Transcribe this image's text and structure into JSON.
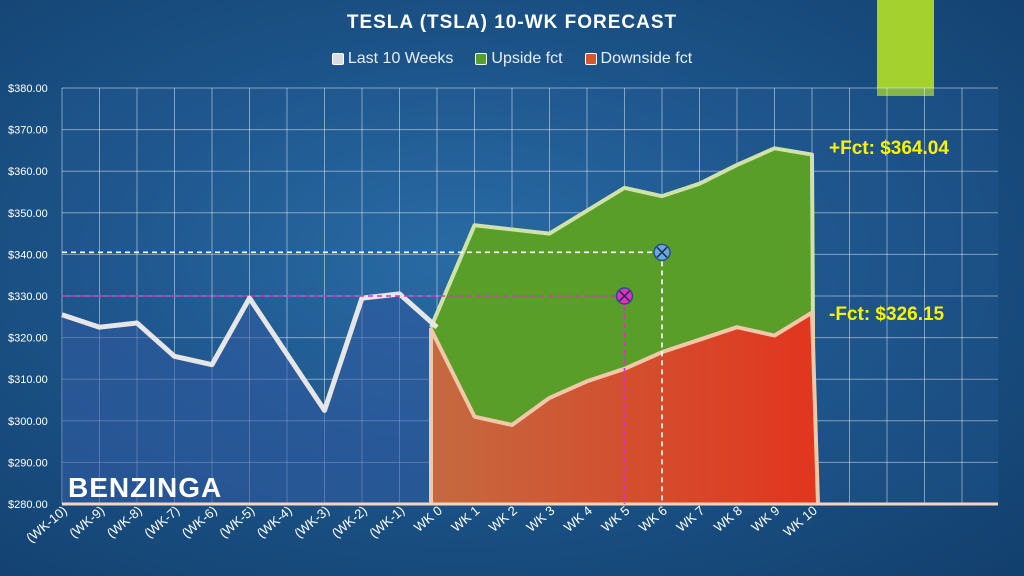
{
  "chart_data": {
    "type": "area",
    "title": "TESLA (TSLA) 10-WK FORECAST",
    "categories": [
      "(WK-10)",
      "(WK-9)",
      "(WK-8)",
      "(WK-7)",
      "(WK-6)",
      "(WK-5)",
      "(WK-4)",
      "(WK-3)",
      "(WK-2)",
      "(WK-1)",
      "WK 0",
      "WK 1",
      "WK 2",
      "WK 3",
      "WK 4",
      "WK 5",
      "WK 6",
      "WK 7",
      "WK 8",
      "WK 9",
      "WK 10"
    ],
    "ylim": [
      280,
      380
    ],
    "yticks": [
      "$280.00",
      "$290.00",
      "$300.00",
      "$310.00",
      "$320.00",
      "$330.00",
      "$340.00",
      "$350.00",
      "$360.00",
      "$370.00",
      "$380.00"
    ],
    "grid": true,
    "legend_position": "top",
    "series": [
      {
        "name": "Last 10 Weeks",
        "type": "line",
        "color": "#e6e6e6",
        "values": [
          325.5,
          322.5,
          323.5,
          315.5,
          313.5,
          329.5,
          316.0,
          302.5,
          329.5,
          330.5,
          322.5,
          null,
          null,
          null,
          null,
          null,
          null,
          null,
          null,
          null,
          null
        ]
      },
      {
        "name": "Upside fct",
        "type": "area",
        "color": "#5a9e2a",
        "values": [
          null,
          null,
          null,
          null,
          null,
          null,
          null,
          null,
          null,
          null,
          322.5,
          347.0,
          346.0,
          345.0,
          350.5,
          356.0,
          354.0,
          357.0,
          361.5,
          365.5,
          364.0
        ]
      },
      {
        "name": "Downside fct",
        "type": "area",
        "color": "#d9552e",
        "values": [
          null,
          null,
          null,
          null,
          null,
          null,
          null,
          null,
          null,
          null,
          322.0,
          301.0,
          299.0,
          305.5,
          309.5,
          312.5,
          316.5,
          319.5,
          322.5,
          320.5,
          326.0
        ]
      }
    ],
    "markers": [
      {
        "name": "upside-target",
        "x": "WK 6",
        "y": 340.5,
        "color": "#6aa8e0"
      },
      {
        "name": "downside-target",
        "x": "WK 5",
        "y": 330.0,
        "color": "#e22fc4"
      }
    ],
    "annotations": [
      {
        "text": "+Fct: $364.04",
        "color": "#fff200"
      },
      {
        "text": "-Fct: $326.15",
        "color": "#fff200"
      }
    ]
  },
  "brand": {
    "logo_text": "BENZINGA",
    "accent_color": "#a5d12f"
  }
}
